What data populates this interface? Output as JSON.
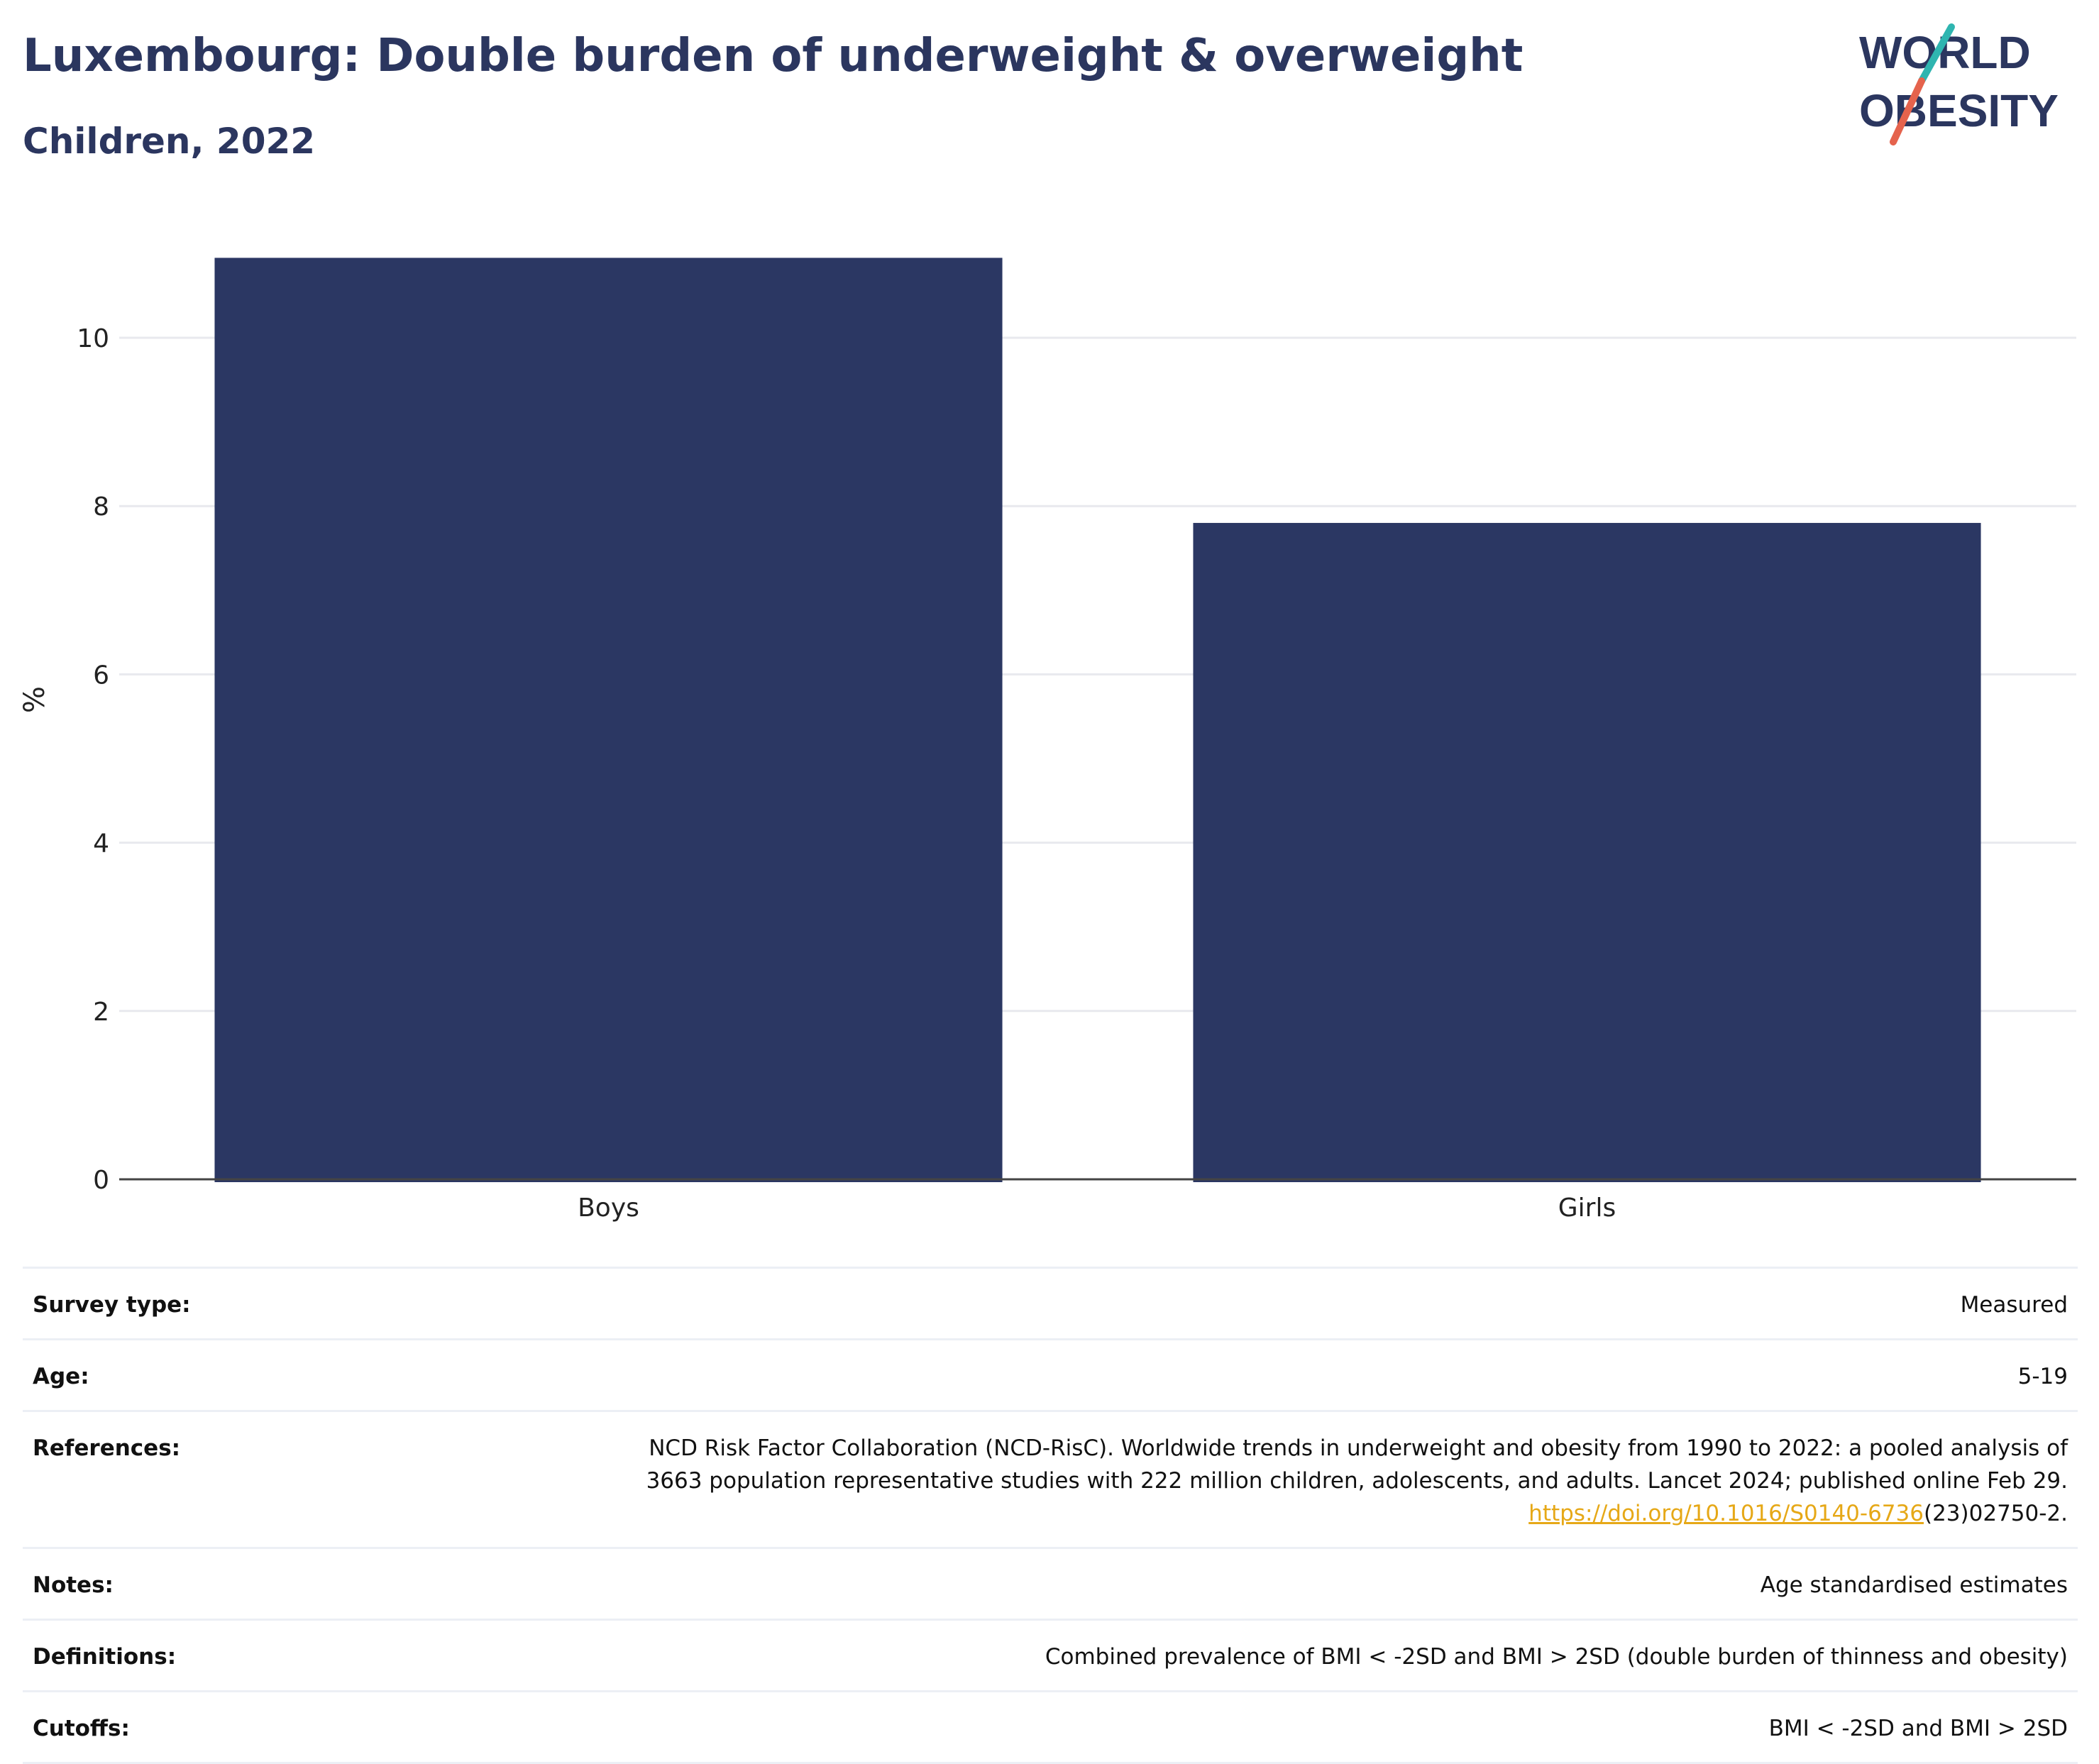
{
  "header": {
    "title": "Luxembourg: Double burden of underweight & overweight",
    "subtitle": "Children, 2022"
  },
  "logo": {
    "line1": "WORLD",
    "line2": "OBESITY",
    "colors": {
      "text": "#2b365f",
      "stroke_top": "#2fb5b0",
      "stroke_bottom": "#e5634d"
    }
  },
  "chart_data": {
    "type": "bar",
    "title": "Luxembourg: Double burden of underweight & overweight",
    "subtitle": "Children, 2022",
    "categories": [
      "Boys",
      "Girls"
    ],
    "values": [
      10.95,
      7.8
    ],
    "ylabel": "%",
    "xlabel": "",
    "ylim": [
      0,
      11.4
    ],
    "yticks": [
      0,
      2,
      4,
      6,
      8,
      10
    ],
    "grid": true,
    "bar_color": "#2b3763"
  },
  "metadata": [
    {
      "key": "Survey type:",
      "value": "Measured"
    },
    {
      "key": "Age:",
      "value": "5-19"
    },
    {
      "key": "References:",
      "value_lines": [
        "NCD Risk Factor Collaboration (NCD-RisC). Worldwide trends in underweight and obesity from 1990 to 2022: a pooled analysis of",
        "3663 population representative studies with 222 million children, adolescents, and adults. Lancet 2024; published online Feb 29."
      ],
      "link_text": "https://doi.org/10.1016/S0140-6736",
      "link_suffix": "(23)02750-2."
    },
    {
      "key": "Notes:",
      "value": "Age standardised estimates"
    },
    {
      "key": "Definitions:",
      "value": "Combined prevalence of BMI < -2SD and BMI > 2SD (double burden of thinness and obesity)"
    },
    {
      "key": "Cutoffs:",
      "value": "BMI < -2SD and BMI > 2SD"
    }
  ]
}
